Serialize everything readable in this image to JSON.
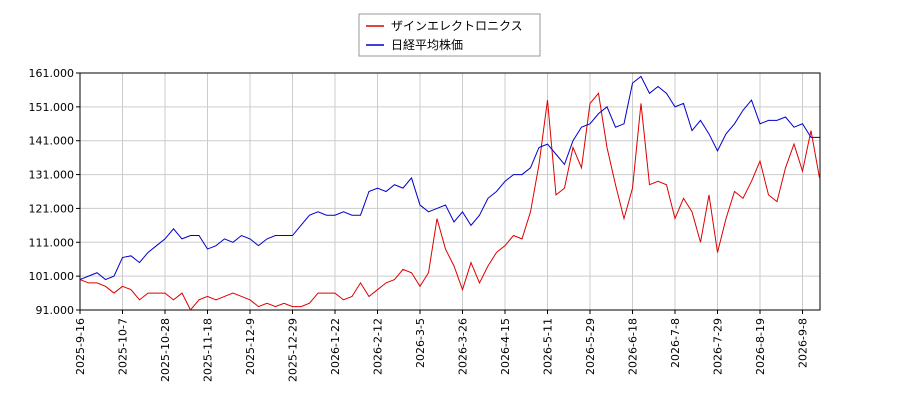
{
  "chart_data": {
    "type": "line",
    "categories": [
      "2025-9-16",
      null,
      null,
      null,
      null,
      "2025-10-7",
      null,
      null,
      null,
      null,
      "2025-10-28",
      null,
      null,
      null,
      null,
      "2025-11-18",
      null,
      null,
      null,
      null,
      "2025-12-9",
      null,
      null,
      null,
      null,
      "2025-12-29",
      null,
      null,
      null,
      null,
      "2026-1-22",
      null,
      null,
      null,
      null,
      "2026-2-12",
      null,
      null,
      null,
      null,
      "2026-3-5",
      null,
      null,
      null,
      null,
      "2026-3-26",
      null,
      null,
      null,
      null,
      "2026-4-15",
      null,
      null,
      null,
      null,
      "2026-5-11",
      null,
      null,
      null,
      null,
      "2026-5-29",
      null,
      null,
      null,
      null,
      "2026-6-18",
      null,
      null,
      null,
      null,
      "2026-7-8",
      null,
      null,
      null,
      null,
      "2026-7-29",
      null,
      null,
      null,
      null,
      "2026-8-19",
      null,
      null,
      null,
      null,
      "2026-9-8",
      null,
      null
    ],
    "series": [
      {
        "name": "ザインエレクトロニクス",
        "color": "#dd0000",
        "values": [
          100000,
          99000,
          99000,
          98000,
          96000,
          98000,
          97000,
          94000,
          96000,
          96000,
          96000,
          94000,
          96000,
          91000,
          94000,
          95000,
          94000,
          95000,
          96000,
          95000,
          94000,
          92000,
          93000,
          92000,
          93000,
          92000,
          92000,
          93000,
          96000,
          96000,
          96000,
          94000,
          95000,
          99000,
          95000,
          97000,
          99000,
          100000,
          103000,
          102000,
          98000,
          102000,
          118000,
          109000,
          104000,
          97000,
          105000,
          99000,
          104000,
          108000,
          110000,
          113000,
          112000,
          120000,
          134000,
          153000,
          125000,
          127000,
          139000,
          133000,
          152000,
          155000,
          139000,
          128000,
          118000,
          127000,
          152000,
          128000,
          129000,
          128000,
          118000,
          124000,
          120000,
          111000,
          125000,
          108000,
          118000,
          126000,
          124000,
          129000,
          135000,
          125000,
          123000,
          133000,
          140000,
          132000,
          144000,
          130000
        ]
      },
      {
        "name": "日経平均株価",
        "color": "#0000cc",
        "values": [
          100000,
          101000,
          102000,
          100000,
          101000,
          106500,
          107000,
          105000,
          108000,
          110000,
          112000,
          115000,
          112000,
          113000,
          113000,
          109000,
          110000,
          112000,
          111000,
          113000,
          112000,
          110000,
          112000,
          113000,
          113000,
          113000,
          116000,
          119000,
          120000,
          119000,
          119000,
          120000,
          119000,
          119000,
          126000,
          127000,
          126000,
          128000,
          127000,
          130000,
          122000,
          120000,
          121000,
          122000,
          117000,
          120000,
          116000,
          119000,
          124000,
          126000,
          129000,
          131000,
          131000,
          133000,
          139000,
          140000,
          137000,
          134000,
          141000,
          145000,
          146000,
          149000,
          151000,
          145000,
          146000,
          158000,
          160000,
          155000,
          157000,
          155000,
          151000,
          152000,
          144000,
          147000,
          143000,
          138000,
          143000,
          146000,
          150000,
          153000,
          146000,
          147000,
          147000,
          148000,
          145000,
          146000,
          142000,
          142000
        ]
      }
    ],
    "ylim": [
      91000,
      161000
    ],
    "yticks": [
      {
        "value": 91000,
        "label": "91.000"
      },
      {
        "value": 101000,
        "label": "101.000"
      },
      {
        "value": 111000,
        "label": "111.000"
      },
      {
        "value": 121000,
        "label": "121.000"
      },
      {
        "value": 131000,
        "label": "131.000"
      },
      {
        "value": 141000,
        "label": "141.000"
      },
      {
        "value": 151000,
        "label": "151.000"
      },
      {
        "value": 161000,
        "label": "161.000"
      }
    ],
    "grid": true
  }
}
